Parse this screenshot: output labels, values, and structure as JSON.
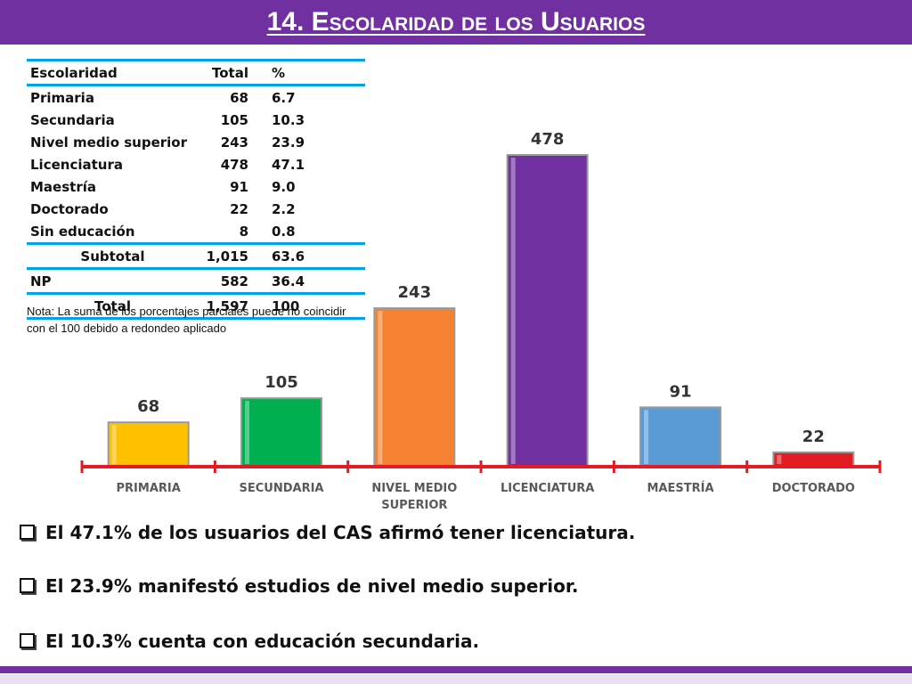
{
  "header": {
    "title": "14. Escolaridad de los Usuarios"
  },
  "colors": {
    "header": "#7030a0",
    "table_rule": "#00a2e8",
    "axis": "#e31c23"
  },
  "table": {
    "headers": [
      "Escolaridad",
      "Total",
      "%"
    ],
    "rows": [
      [
        "Primaria",
        "68",
        "6.7"
      ],
      [
        "Secundaria",
        "105",
        "10.3"
      ],
      [
        "Nivel medio superior",
        "243",
        "23.9"
      ],
      [
        "Licenciatura",
        "478",
        "47.1"
      ],
      [
        "Maestría",
        "91",
        "9.0"
      ],
      [
        "Doctorado",
        "22",
        "2.2"
      ],
      [
        "Sin educación",
        "8",
        "0.8"
      ]
    ],
    "subtotal": [
      "Subtotal",
      "1,015",
      "63.6"
    ],
    "np": [
      "NP",
      "582",
      "36.4"
    ],
    "total": [
      "Total",
      "1,597",
      "100"
    ]
  },
  "note": "Nota: La suma de los porcentajes parciales puede no coincidir con el 100 debido a redondeo aplicado",
  "chart_data": {
    "type": "bar",
    "title": "",
    "xlabel": "",
    "ylabel": "",
    "categories": [
      "PRIMARIA",
      "SECUNDARIA",
      "NIVEL MEDIO SUPERIOR",
      "LICENCIATURA",
      "MAESTRÍA",
      "DOCTORADO"
    ],
    "category_lines": [
      [
        "PRIMARIA"
      ],
      [
        "SECUNDARIA"
      ],
      [
        "NIVEL MEDIO",
        "SUPERIOR"
      ],
      [
        "LICENCIATURA"
      ],
      [
        "MAESTRÍA"
      ],
      [
        "DOCTORADO"
      ]
    ],
    "values": [
      68,
      105,
      243,
      478,
      91,
      22
    ],
    "data_labels": [
      "68",
      "105",
      "243",
      "478",
      "91",
      "22"
    ],
    "bar_colors": [
      "#ffc000",
      "#00b050",
      "#f58232",
      "#7030a0",
      "#5b9bd5",
      "#e31c23"
    ],
    "ylim": [
      0,
      478
    ],
    "grid": false,
    "legend": "none"
  },
  "bullets": [
    "El 47.1% de los usuarios del CAS afirmó tener licenciatura.",
    "El 23.9% manifestó estudios de nivel medio superior.",
    "El 10.3% cuenta con educación secundaria."
  ]
}
